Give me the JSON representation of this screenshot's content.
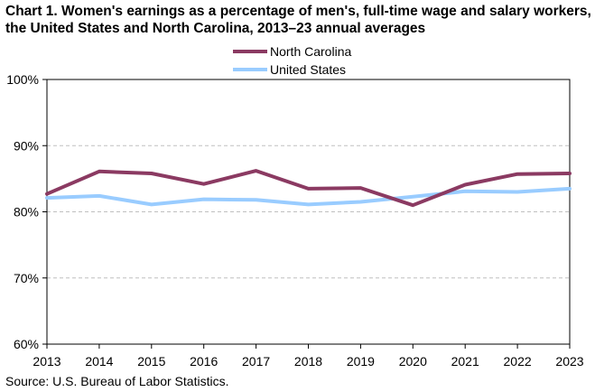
{
  "chart_data": {
    "type": "line",
    "title": "Chart 1. Women's earnings as a percentage of men's, full-time wage and salary workers, the United States and North Carolina, 2013–23 annual averages",
    "x": [
      "2013",
      "2014",
      "2015",
      "2016",
      "2017",
      "2018",
      "2019",
      "2020",
      "2021",
      "2022",
      "2023"
    ],
    "series": [
      {
        "name": "North Carolina",
        "color": "#8b3a62",
        "values": [
          82.7,
          86.1,
          85.8,
          84.2,
          86.2,
          83.5,
          83.6,
          81.0,
          84.1,
          85.7,
          85.8
        ]
      },
      {
        "name": "United States",
        "color": "#99ccff",
        "values": [
          82.1,
          82.4,
          81.1,
          81.9,
          81.8,
          81.1,
          81.5,
          82.3,
          83.1,
          83.0,
          83.5
        ]
      }
    ],
    "ylim": [
      60,
      100
    ],
    "y_ticks": [
      60,
      70,
      80,
      90,
      100
    ],
    "y_tick_labels": [
      "60%",
      "70%",
      "80%",
      "90%",
      "100%"
    ],
    "xlabel": "",
    "ylabel": "",
    "grid": "horizontal-dashed",
    "legend": "top-center",
    "source": "Source: U.S. Bureau of Labor Statistics."
  }
}
